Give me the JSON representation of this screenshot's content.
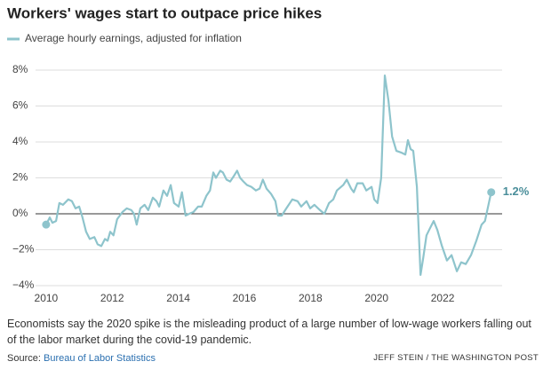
{
  "chart_data": {
    "type": "line",
    "title": "Workers' wages start to outpace price hikes",
    "series": [
      {
        "name": "Average hourly earnings, adjusted for inflation",
        "color": "#8ec4cc",
        "x": [
          2010.0,
          2010.11,
          2010.19,
          2010.3,
          2010.4,
          2010.51,
          2010.67,
          2010.78,
          2010.89,
          2011.0,
          2011.1,
          2011.21,
          2011.32,
          2011.46,
          2011.56,
          2011.67,
          2011.78,
          2011.86,
          2011.94,
          2012.04,
          2012.15,
          2012.31,
          2012.44,
          2012.58,
          2012.66,
          2012.74,
          2012.85,
          2012.98,
          2013.09,
          2013.23,
          2013.34,
          2013.42,
          2013.55,
          2013.66,
          2013.77,
          2013.87,
          2014.01,
          2014.11,
          2014.22,
          2014.33,
          2014.46,
          2014.6,
          2014.71,
          2014.85,
          2014.96,
          2015.06,
          2015.14,
          2015.27,
          2015.35,
          2015.46,
          2015.57,
          2015.68,
          2015.78,
          2015.87,
          2015.97,
          2016.08,
          2016.21,
          2016.35,
          2016.46,
          2016.56,
          2016.67,
          2016.81,
          2016.94,
          2017.02,
          2017.13,
          2017.27,
          2017.45,
          2017.61,
          2017.72,
          2017.88,
          2017.99,
          2018.12,
          2018.29,
          2018.42,
          2018.56,
          2018.69,
          2018.8,
          2018.99,
          2019.1,
          2019.23,
          2019.31,
          2019.42,
          2019.58,
          2019.69,
          2019.85,
          2019.93,
          2020.03,
          2020.14,
          2020.25,
          2020.36,
          2020.47,
          2020.6,
          2020.76,
          2020.87,
          2020.95,
          2021.03,
          2021.11,
          2021.22,
          2021.33,
          2021.41,
          2021.51,
          2021.62,
          2021.73,
          2021.84,
          2021.98,
          2022.13,
          2022.27,
          2022.43,
          2022.56,
          2022.7,
          2022.86,
          2023.02,
          2023.18,
          2023.28,
          2023.47
        ],
        "values": [
          -0.6,
          -0.2,
          -0.5,
          -0.4,
          0.6,
          0.5,
          0.8,
          0.7,
          0.3,
          0.4,
          -0.2,
          -1.0,
          -1.4,
          -1.3,
          -1.7,
          -1.8,
          -1.4,
          -1.5,
          -1.0,
          -1.2,
          -0.3,
          0.1,
          0.3,
          0.2,
          0.0,
          -0.6,
          0.3,
          0.5,
          0.2,
          0.9,
          0.7,
          0.4,
          1.3,
          1.0,
          1.6,
          0.6,
          0.4,
          1.2,
          -0.1,
          0.0,
          0.1,
          0.4,
          0.4,
          1.0,
          1.3,
          2.3,
          2.0,
          2.4,
          2.3,
          1.9,
          1.8,
          2.1,
          2.4,
          2.0,
          1.8,
          1.6,
          1.5,
          1.3,
          1.4,
          1.9,
          1.4,
          1.1,
          0.7,
          -0.1,
          -0.1,
          0.3,
          0.8,
          0.7,
          0.4,
          0.7,
          0.3,
          0.5,
          0.2,
          0.0,
          0.6,
          0.8,
          1.3,
          1.6,
          1.9,
          1.4,
          1.2,
          1.7,
          1.7,
          1.3,
          1.5,
          0.8,
          0.6,
          2.0,
          7.7,
          6.3,
          4.3,
          3.5,
          3.4,
          3.3,
          4.1,
          3.6,
          3.5,
          1.5,
          -3.4,
          -2.5,
          -1.2,
          -0.8,
          -0.4,
          -0.9,
          -1.8,
          -2.6,
          -2.3,
          -3.2,
          -2.7,
          -2.8,
          -2.3,
          -1.5,
          -0.6,
          -0.4,
          1.2
        ]
      }
    ],
    "annotations": [
      {
        "text": "1.2%",
        "x": 2023.47,
        "y": 1.2
      }
    ],
    "xlim": [
      2009.68,
      2023.8
    ],
    "xticks": [
      2010,
      2012,
      2014,
      2016,
      2018,
      2020,
      2022
    ],
    "ylim": [
      -4,
      8
    ],
    "yticks": [
      {
        "value": -4,
        "label": "−4%"
      },
      {
        "value": -2,
        "label": "−2%"
      },
      {
        "value": 0,
        "label": "0%"
      },
      {
        "value": 2,
        "label": "2%"
      },
      {
        "value": 4,
        "label": "4%"
      },
      {
        "value": 6,
        "label": "6%"
      },
      {
        "value": 8,
        "label": "8%"
      }
    ],
    "grid": true,
    "note": "Economists say the 2020 spike is the misleading product of a large number of low-wage workers falling out of the labor market during the covid-19 pandemic.",
    "source_label": "Source:",
    "source": "Bureau of Labor Statistics",
    "credit": "JEFF STEIN / THE WASHINGTON POST"
  }
}
